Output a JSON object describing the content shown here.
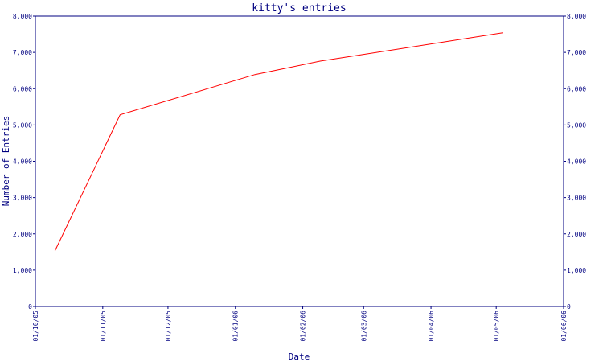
{
  "chart_data": {
    "type": "line",
    "title": "kitty's entries",
    "xlabel": "Date",
    "ylabel": "Number of Entries",
    "ylim": [
      0,
      8000
    ],
    "yticks": [
      0,
      1000,
      2000,
      3000,
      4000,
      5000,
      6000,
      7000,
      8000
    ],
    "ytick_labels": [
      "0",
      "1,000",
      "2,000",
      "3,000",
      "4,000",
      "5,000",
      "6,000",
      "7,000",
      "8,000"
    ],
    "xlim": [
      "2005-10-01",
      "2006-06-01"
    ],
    "xtick_labels": [
      "01/10/05",
      "01/11/05",
      "01/12/05",
      "01/01/06",
      "01/02/06",
      "01/03/06",
      "01/04/06",
      "01/05/06",
      "01/06/06"
    ],
    "xticks": [
      "2005-10-01",
      "2005-11-01",
      "2005-12-01",
      "2006-01-01",
      "2006-02-01",
      "2006-03-01",
      "2006-04-01",
      "2006-05-01",
      "2006-06-01"
    ],
    "grid": false,
    "series": [
      {
        "color": "#ff0000",
        "x": [
          "2005-10-10",
          "2005-11-09",
          "2006-01-10",
          "2006-02-09",
          "2006-05-04"
        ],
        "y": [
          1530,
          5280,
          6390,
          6760,
          7540
        ]
      }
    ],
    "colors": {
      "axis": "#000080",
      "line": "#ff0000"
    }
  }
}
